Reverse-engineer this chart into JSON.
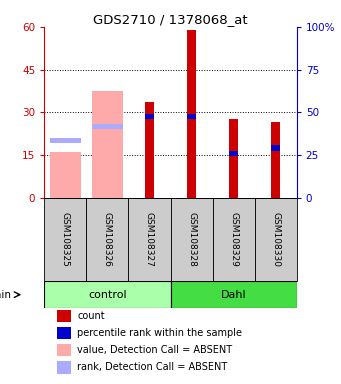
{
  "title": "GDS2710 / 1378068_at",
  "samples": [
    "GSM108325",
    "GSM108326",
    "GSM108327",
    "GSM108328",
    "GSM108329",
    "GSM108330"
  ],
  "groups": [
    "control",
    "control",
    "control",
    "Dahl",
    "Dahl",
    "Dahl"
  ],
  "count_values": [
    null,
    null,
    33.5,
    59.0,
    27.5,
    26.5
  ],
  "rank_values": [
    null,
    null,
    28.5,
    28.5,
    15.5,
    17.5
  ],
  "absent_value": [
    16.0,
    37.5,
    null,
    null,
    null,
    null
  ],
  "absent_rank": [
    20.0,
    25.0,
    null,
    null,
    null,
    null
  ],
  "ylim": [
    0,
    60
  ],
  "yticks": [
    0,
    15,
    30,
    45,
    60
  ],
  "right_yticks": [
    0,
    25,
    50,
    75,
    100
  ],
  "count_color": "#cc0000",
  "rank_color": "#0000cc",
  "absent_value_color": "#ffaaaa",
  "absent_rank_color": "#aaaaff",
  "control_color": "#aaffaa",
  "dahl_color": "#44dd44",
  "left_axis_color": "#cc0000",
  "right_axis_color": "#0000cc",
  "grid_color": "#000000",
  "sample_bg_color": "#cccccc",
  "plot_bg": "#ffffff"
}
